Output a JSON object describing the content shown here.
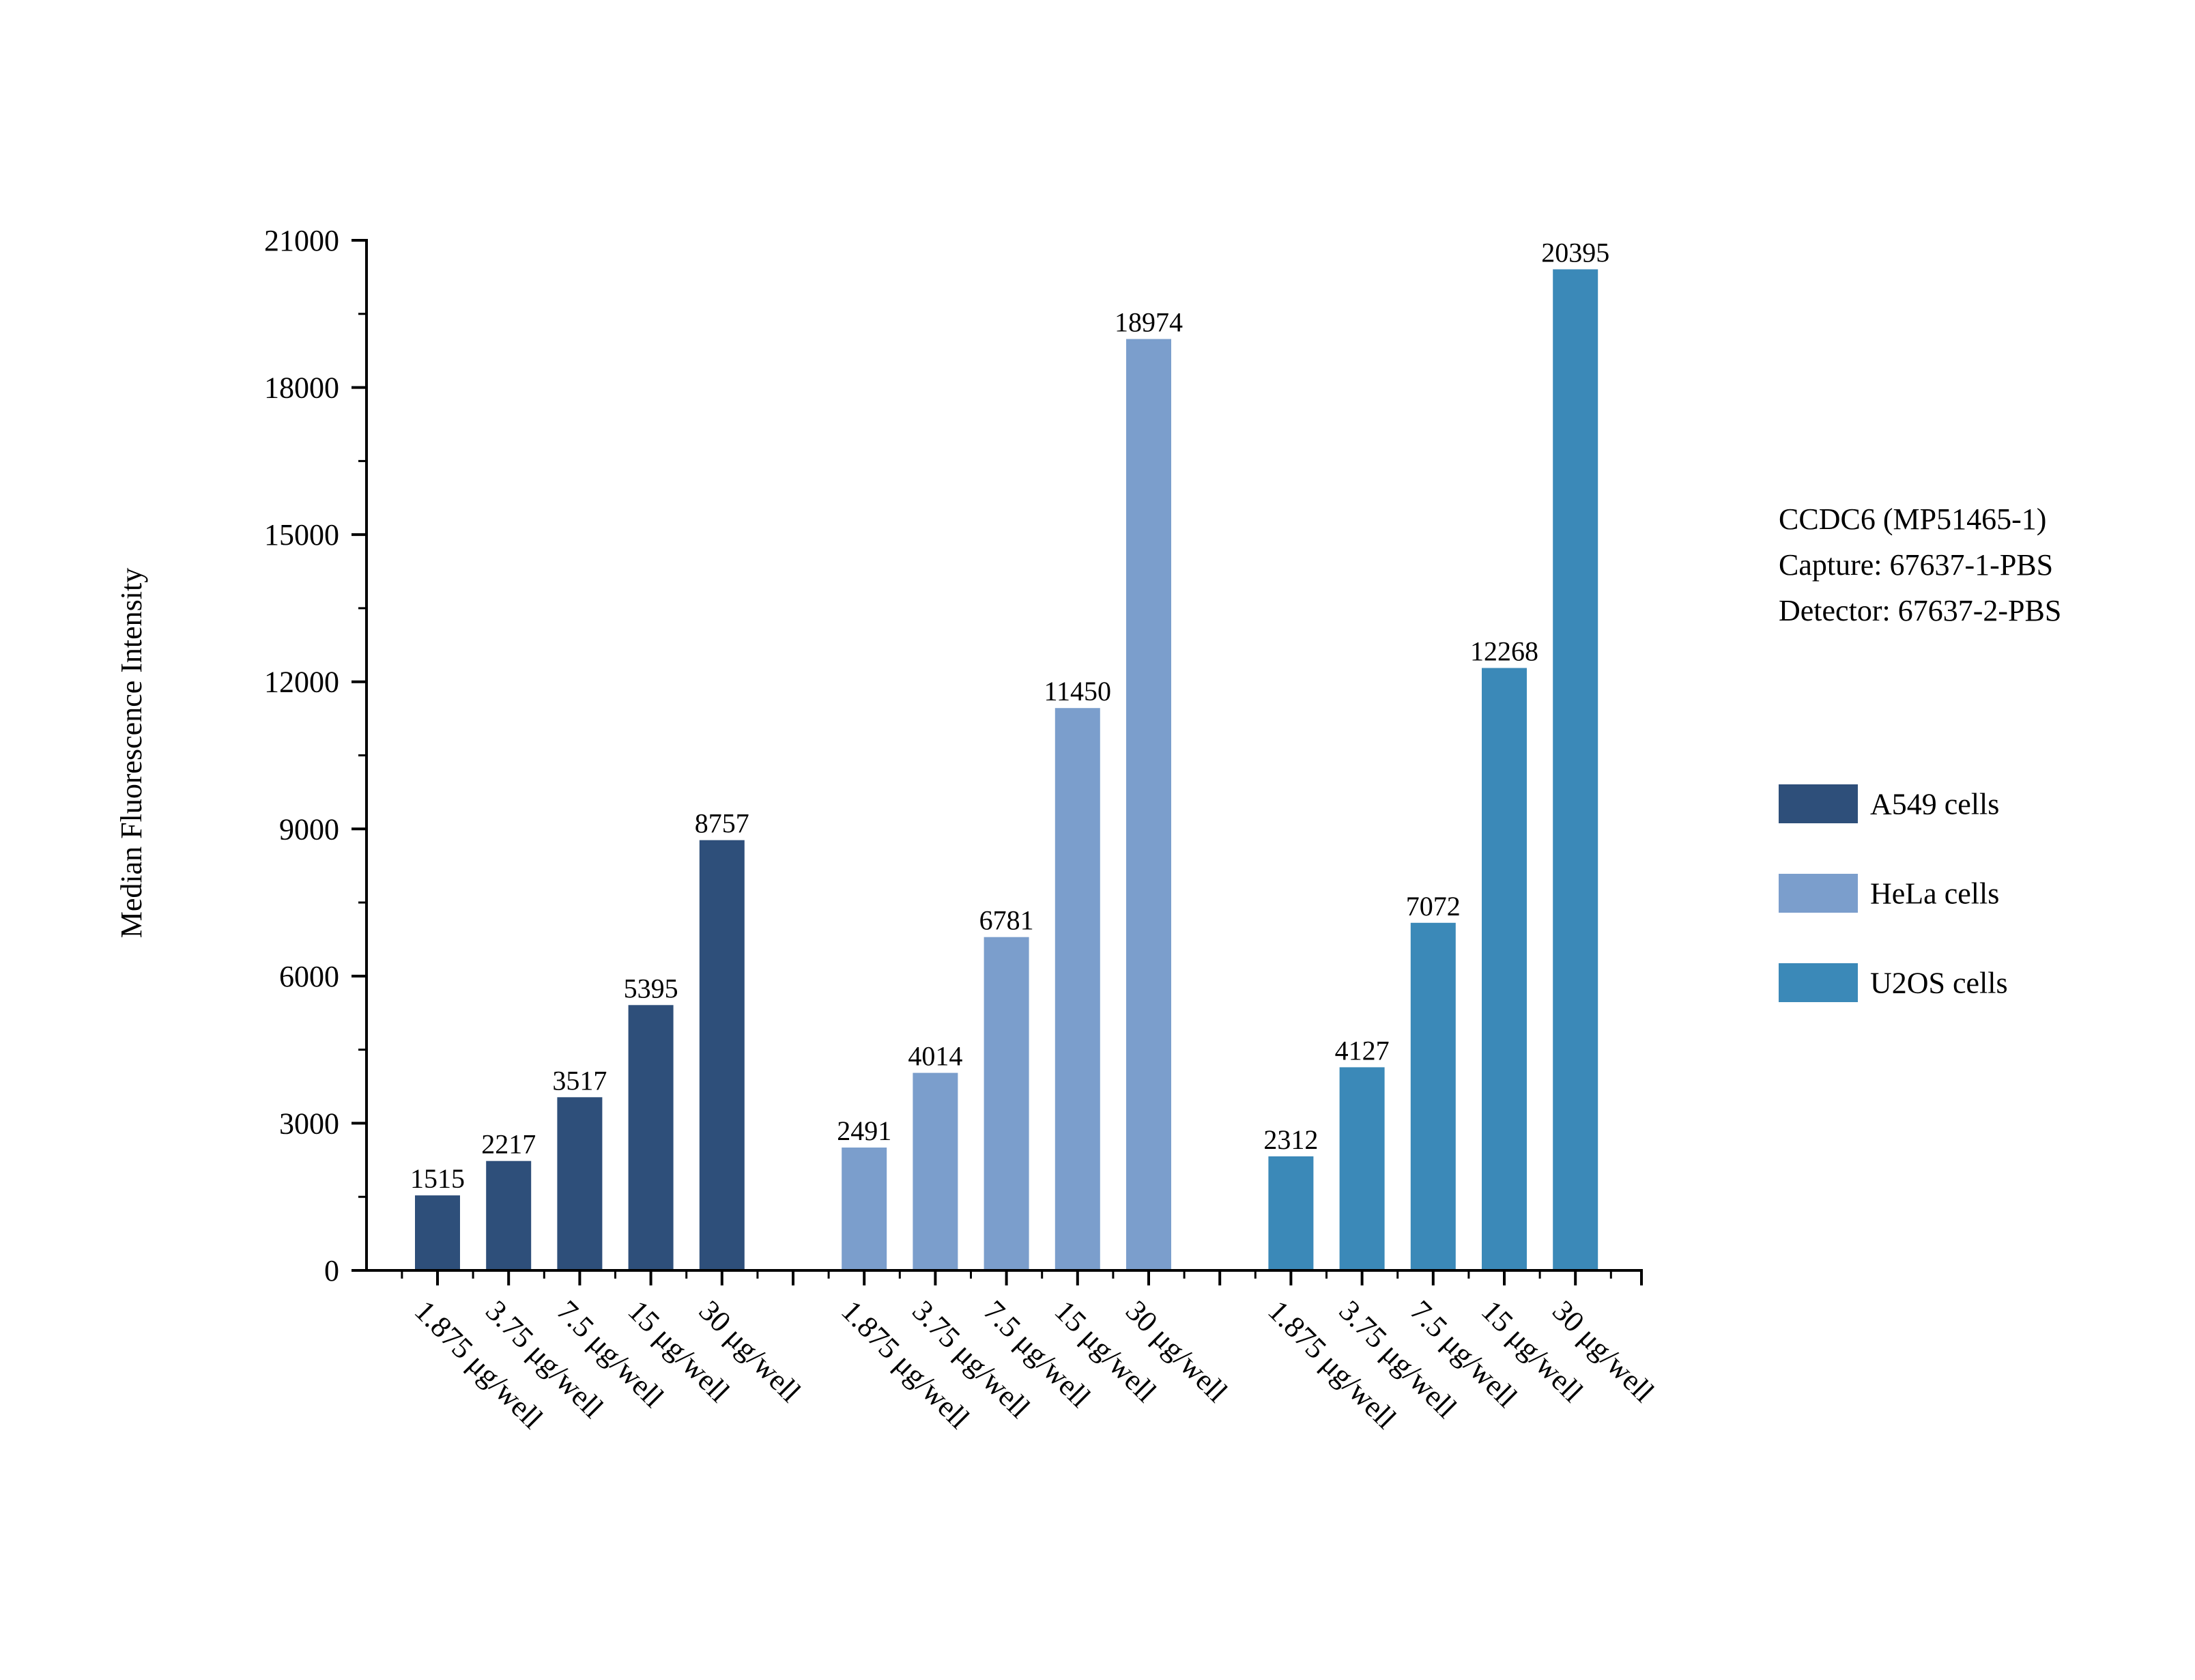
{
  "chart_data": {
    "type": "bar",
    "title": "",
    "xlabel": "",
    "ylabel": "Median Fluorescence Intensity",
    "ylim": [
      0,
      21000
    ],
    "yticks": [
      0,
      3000,
      6000,
      9000,
      12000,
      15000,
      18000,
      21000
    ],
    "grid": false,
    "legend_position": "right",
    "categories": [
      "1.875 μg/well",
      "3.75 μg/well",
      "7.5 μg/well",
      "15 μg/well",
      "30 μg/well"
    ],
    "series": [
      {
        "name": "A549 cells",
        "color": "#2e4f7a",
        "values": [
          1515,
          2217,
          3517,
          5395,
          8757
        ]
      },
      {
        "name": "HeLa cells",
        "color": "#7b9ecc",
        "values": [
          2491,
          4014,
          6781,
          11450,
          18974
        ]
      },
      {
        "name": "U2OS cells",
        "color": "#3b89b8",
        "values": [
          2312,
          4127,
          7072,
          12268,
          20395
        ]
      }
    ],
    "annotations": [
      "CCDC6 (MP51465-1)",
      "Capture: 67637-1-PBS",
      "Detector: 67637-2-PBS"
    ]
  }
}
